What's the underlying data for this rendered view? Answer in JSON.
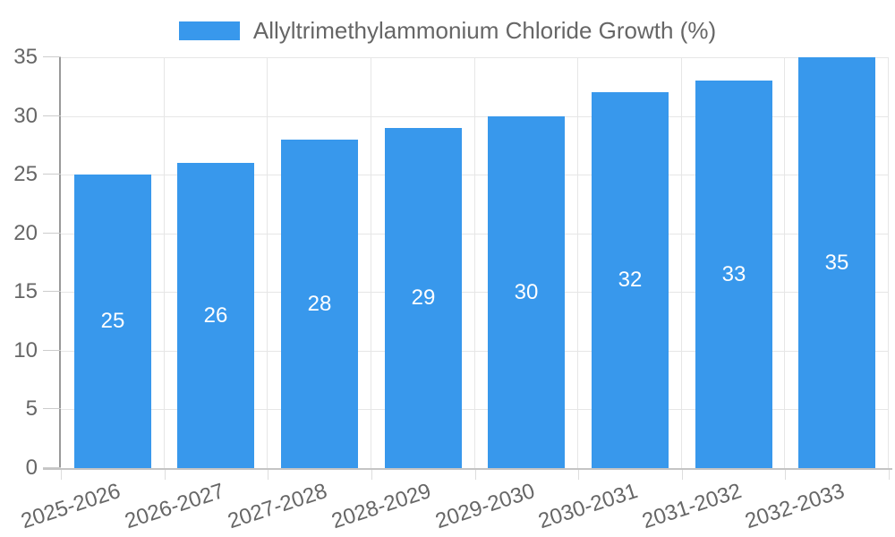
{
  "legend": {
    "label": "Allyltrimethylammonium Chloride Growth (%)"
  },
  "chart_data": {
    "type": "bar",
    "title": "Allyltrimethylammonium Chloride Growth (%)",
    "series_name": "Allyltrimethylammonium Chloride Growth (%)",
    "categories": [
      "2025-2026",
      "2026-2027",
      "2027-2028",
      "2028-2029",
      "2029-2030",
      "2030-2031",
      "2031-2032",
      "2032-2033"
    ],
    "values": [
      25,
      26,
      28,
      29,
      30,
      32,
      33,
      35
    ],
    "xlabel": "",
    "ylabel": "",
    "ylim": [
      0,
      35
    ],
    "ytick_step": 5,
    "ytick_labels": [
      "0",
      "5",
      "10",
      "15",
      "20",
      "25",
      "30",
      "35"
    ],
    "grid": true,
    "legend_position": "top-center",
    "colors": {
      "bar": "#3898ec",
      "bar_label": "#ffffff",
      "axis_text": "#666666",
      "gridline": "#e6e6e6",
      "y_axis_line": "#999999",
      "x_axis_line": "#c4c4c4",
      "y_tick": "#cccccc",
      "x_tick": "#dddddd",
      "background": "#ffffff"
    }
  }
}
